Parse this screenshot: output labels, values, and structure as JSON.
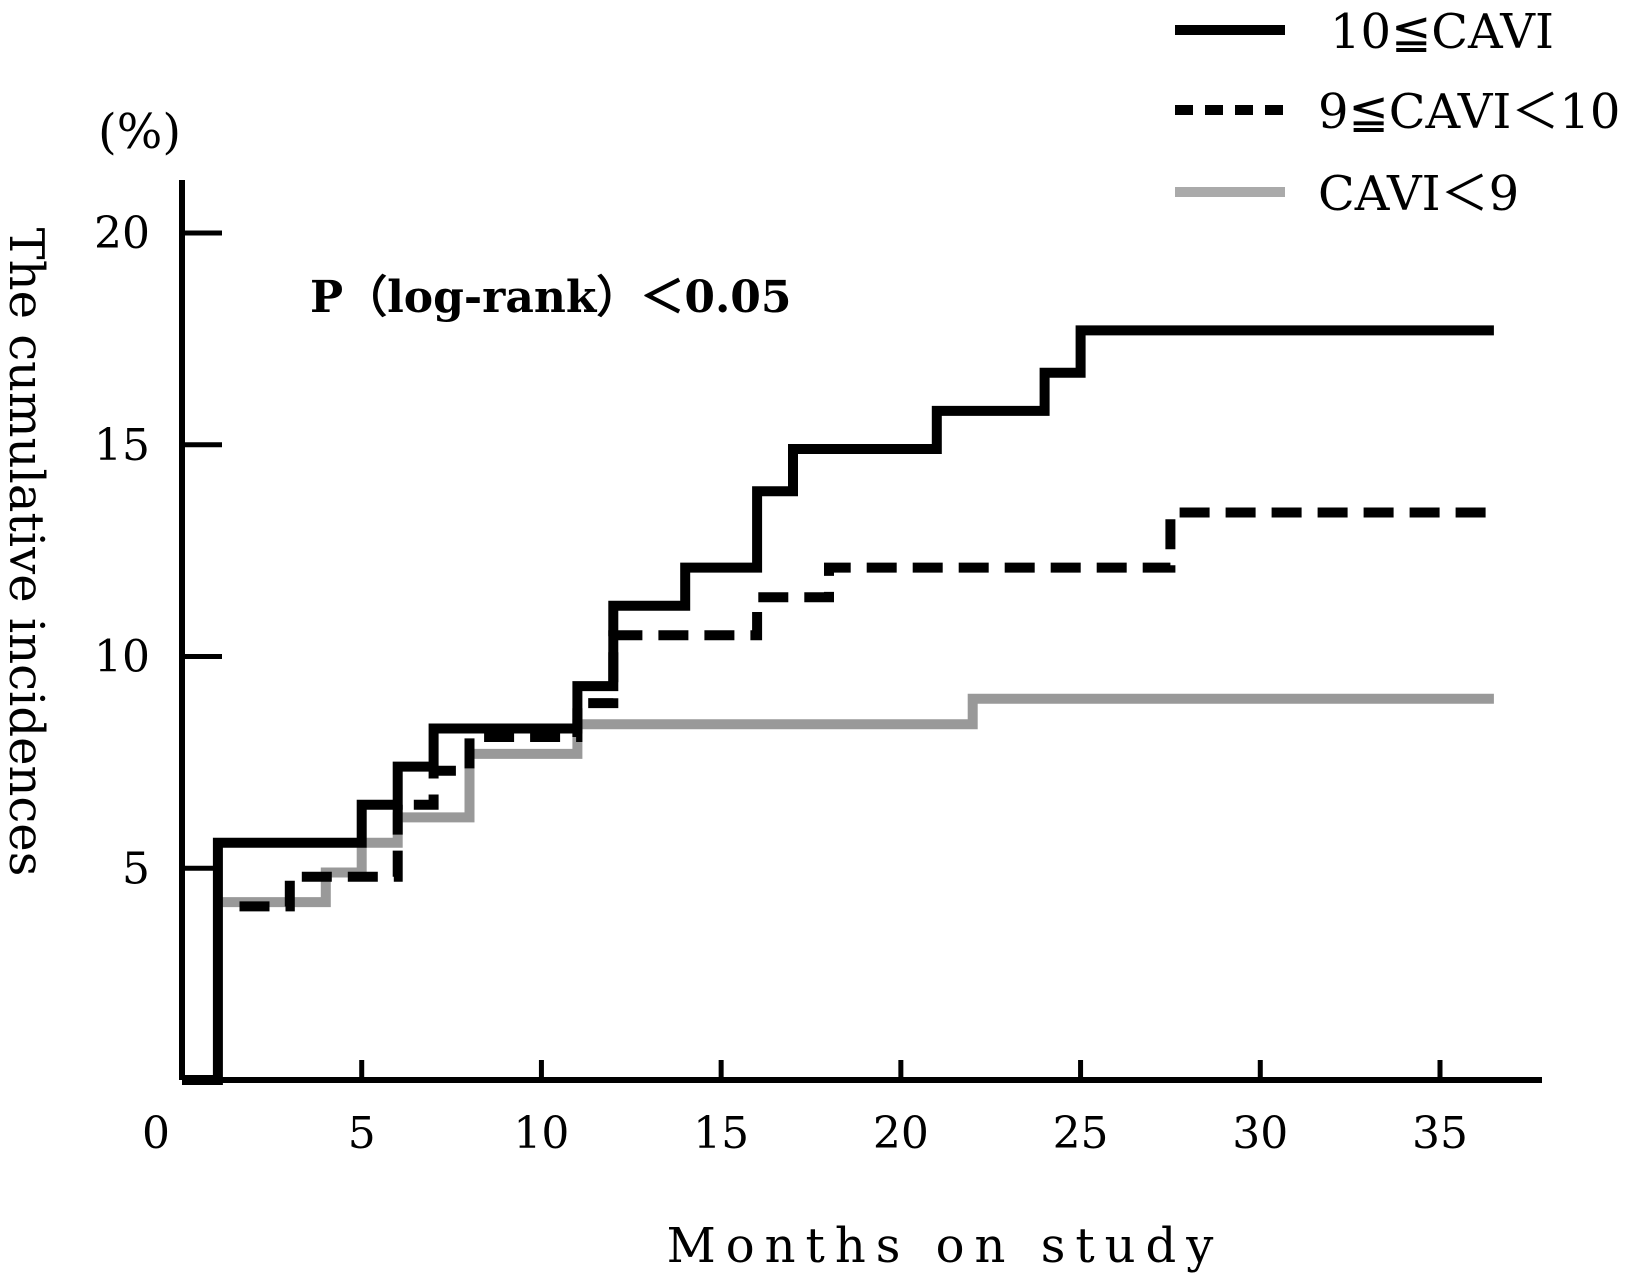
{
  "chart_data": {
    "type": "line",
    "subtype": "step (Kaplan-Meier cumulative incidence)",
    "xlabel": "Months on study",
    "ylabel": "The cumulative incidences",
    "y_unit": "(%)",
    "xlim": [
      0,
      38
    ],
    "ylim": [
      0,
      21
    ],
    "x_ticks": [
      0,
      5,
      10,
      15,
      20,
      25,
      30,
      35
    ],
    "y_ticks": [
      5,
      10,
      15,
      20
    ],
    "x_tick_labels": [
      "0",
      "5",
      "10",
      "15",
      "20",
      "25",
      "30",
      "35"
    ],
    "y_tick_labels": [
      "5",
      "10",
      "15",
      "20"
    ],
    "annotation": "P（log-rank）＜0.05",
    "legend_position": "top-right",
    "series": [
      {
        "name": "10≦CAVI",
        "style": "solid",
        "color": "#000000",
        "points": [
          [
            0,
            0
          ],
          [
            1,
            0
          ],
          [
            1,
            5.6
          ],
          [
            5,
            5.6
          ],
          [
            5,
            6.5
          ],
          [
            6,
            6.5
          ],
          [
            6,
            7.4
          ],
          [
            7,
            7.4
          ],
          [
            7,
            8.3
          ],
          [
            11,
            8.3
          ],
          [
            11,
            9.3
          ],
          [
            12,
            9.3
          ],
          [
            12,
            11.2
          ],
          [
            14,
            11.2
          ],
          [
            14,
            12.1
          ],
          [
            16,
            12.1
          ],
          [
            16,
            13.9
          ],
          [
            17,
            13.9
          ],
          [
            17,
            14.9
          ],
          [
            21,
            14.9
          ],
          [
            21,
            15.8
          ],
          [
            24,
            15.8
          ],
          [
            24,
            16.7
          ],
          [
            25,
            16.7
          ],
          [
            25,
            17.7
          ],
          [
            36.5,
            17.7
          ]
        ]
      },
      {
        "name": "9≦CAVI＜10",
        "style": "dashed",
        "color": "#000000",
        "points": [
          [
            1.6,
            4.1
          ],
          [
            3,
            4.1
          ],
          [
            3,
            4.8
          ],
          [
            6,
            4.8
          ],
          [
            6,
            6.5
          ],
          [
            7,
            6.5
          ],
          [
            7,
            7.3
          ],
          [
            8,
            7.3
          ],
          [
            8,
            8.1
          ],
          [
            11,
            8.1
          ],
          [
            11,
            8.9
          ],
          [
            12,
            8.9
          ],
          [
            12,
            10.5
          ],
          [
            16,
            10.5
          ],
          [
            16,
            11.4
          ],
          [
            18,
            11.4
          ],
          [
            18,
            12.1
          ],
          [
            27.5,
            12.1
          ],
          [
            27.5,
            13.4
          ],
          [
            36.5,
            13.4
          ]
        ]
      },
      {
        "name": "CAVI＜9",
        "style": "solid",
        "color": "#999999",
        "points": [
          [
            1,
            4.2
          ],
          [
            4,
            4.2
          ],
          [
            4,
            4.9
          ],
          [
            5,
            4.9
          ],
          [
            5,
            5.6
          ],
          [
            6,
            5.6
          ],
          [
            6,
            6.2
          ],
          [
            8,
            6.2
          ],
          [
            8,
            7.7
          ],
          [
            11,
            7.7
          ],
          [
            11,
            8.4
          ],
          [
            22,
            8.4
          ],
          [
            22,
            9.0
          ],
          [
            36.5,
            9.0
          ]
        ]
      }
    ]
  },
  "colors": {
    "primary": "#000000",
    "gray_series": "#999999",
    "background": "#ffffff"
  }
}
